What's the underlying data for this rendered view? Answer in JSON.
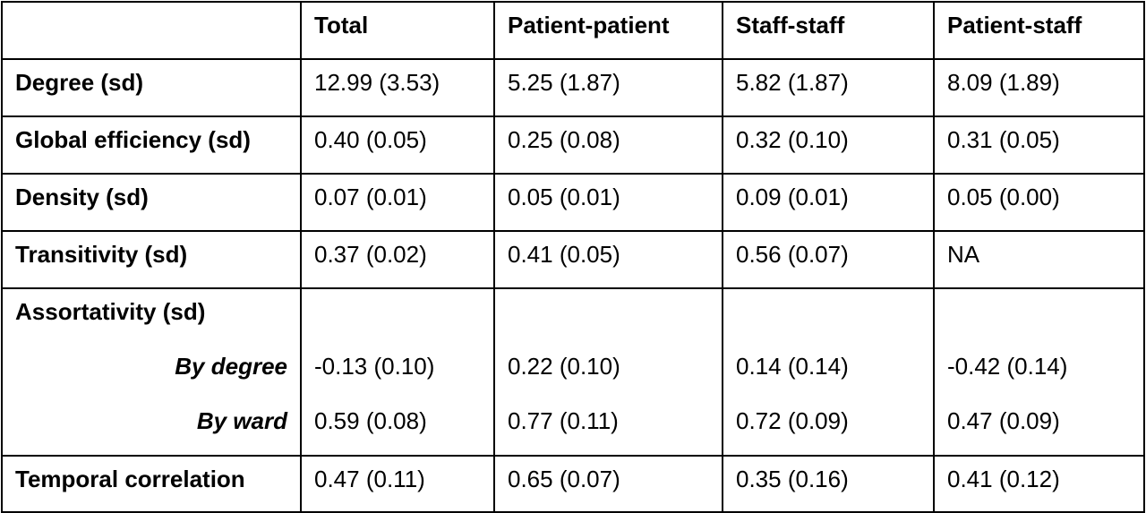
{
  "table": {
    "columns": [
      "",
      "Total",
      "Patient-patient",
      "Staff-staff",
      "Patient-staff"
    ],
    "rows": [
      {
        "label": "Degree (sd)",
        "values": [
          "12.99 (3.53)",
          "5.25 (1.87)",
          "5.82 (1.87)",
          "8.09 (1.89)"
        ]
      },
      {
        "label": "Global efficiency (sd)",
        "values": [
          "0.40 (0.05)",
          "0.25 (0.08)",
          "0.32 (0.10)",
          "0.31 (0.05)"
        ]
      },
      {
        "label": "Density (sd)",
        "values": [
          "0.07 (0.01)",
          "0.05 (0.01)",
          "0.09 (0.01)",
          "0.05 (0.00)"
        ]
      },
      {
        "label": "Transitivity (sd)",
        "values": [
          "0.37 (0.02)",
          "0.41 (0.05)",
          "0.56 (0.07)",
          "NA"
        ]
      }
    ],
    "assortativity": {
      "label": "Assortativity (sd)",
      "by_degree": {
        "label": "By degree",
        "values": [
          "-0.13 (0.10)",
          "0.22 (0.10)",
          "0.14 (0.14)",
          "-0.42 (0.14)"
        ]
      },
      "by_ward": {
        "label": "By ward",
        "values": [
          "0.59 (0.08)",
          "0.77 (0.11)",
          "0.72 (0.09)",
          "0.47 (0.09)"
        ]
      }
    },
    "temporal": {
      "label": "Temporal correlation",
      "values": [
        "0.47 (0.11)",
        "0.65 (0.07)",
        "0.35 (0.16)",
        "0.41 (0.12)"
      ]
    }
  }
}
